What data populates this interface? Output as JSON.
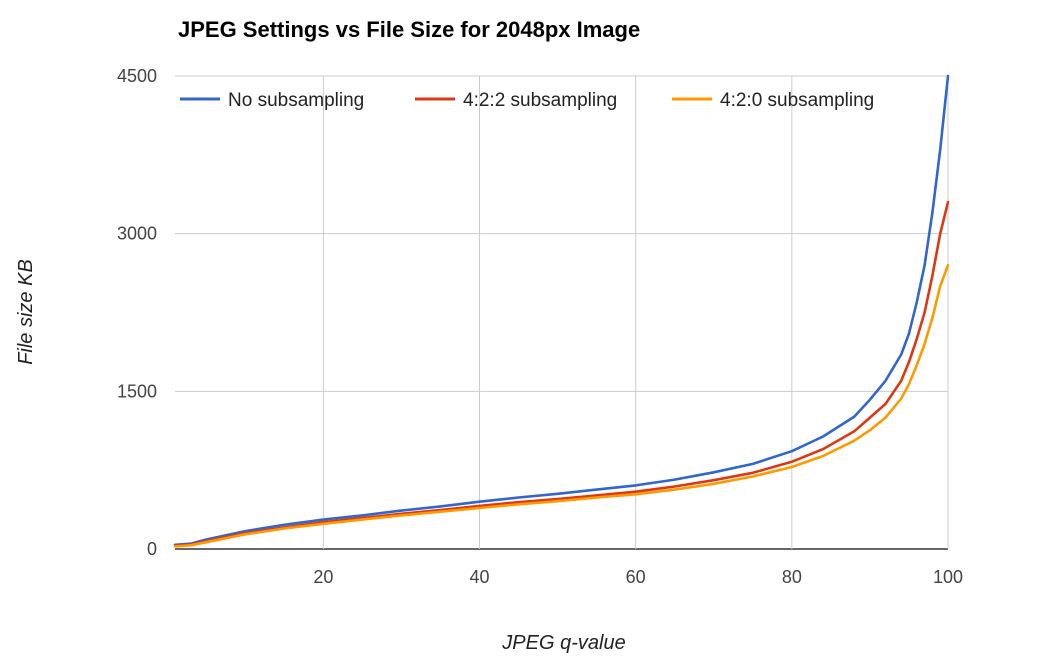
{
  "chart_data": {
    "type": "line",
    "title": "JPEG Settings vs File Size for 2048px Image",
    "xlabel": "JPEG q-value",
    "ylabel": "File size KB",
    "xlim": [
      1,
      100
    ],
    "ylim": [
      0,
      4500
    ],
    "xticks": [
      "20",
      "40",
      "60",
      "80",
      "100"
    ],
    "yticks": [
      "0",
      "1500",
      "3000",
      "4500"
    ],
    "grid": true,
    "legend_position": "top",
    "x": [
      1,
      3,
      5,
      10,
      15,
      20,
      25,
      30,
      35,
      40,
      45,
      50,
      55,
      60,
      65,
      70,
      75,
      80,
      84,
      88,
      90,
      92,
      94,
      95,
      96,
      97,
      98,
      99,
      100
    ],
    "series": [
      {
        "name": "No subsampling",
        "color": "#3366cc",
        "values": [
          40,
          50,
          90,
          170,
          230,
          280,
          320,
          365,
          405,
          450,
          490,
          525,
          565,
          605,
          660,
          730,
          810,
          930,
          1070,
          1260,
          1420,
          1600,
          1850,
          2050,
          2350,
          2700,
          3200,
          3800,
          4500
        ]
      },
      {
        "name": "4:2:2 subsampling",
        "color": "#dc3912",
        "values": [
          30,
          40,
          75,
          150,
          205,
          255,
          295,
          335,
          370,
          410,
          445,
          475,
          510,
          545,
          595,
          655,
          725,
          830,
          950,
          1120,
          1250,
          1380,
          1600,
          1780,
          2000,
          2250,
          2600,
          3000,
          3300
        ]
      },
      {
        "name": "4:2:0 subsampling",
        "color": "#ff9900",
        "values": [
          25,
          35,
          65,
          140,
          195,
          240,
          280,
          320,
          355,
          390,
          425,
          455,
          490,
          520,
          565,
          620,
          690,
          780,
          885,
          1030,
          1130,
          1250,
          1430,
          1570,
          1750,
          1950,
          2200,
          2500,
          2700
        ]
      }
    ]
  }
}
